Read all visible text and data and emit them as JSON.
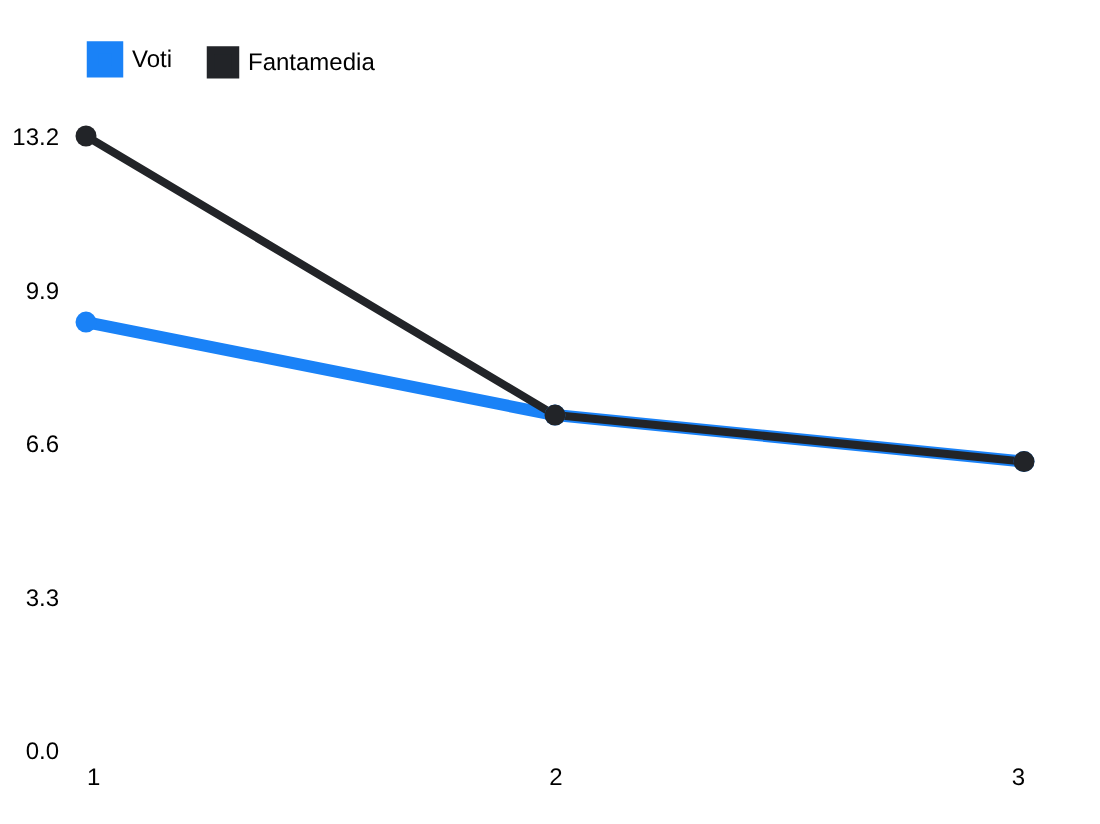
{
  "chart_data": {
    "type": "line",
    "x": [
      1,
      2,
      3
    ],
    "series": [
      {
        "name": "Voti",
        "color": "#1a82f7",
        "values": [
          9.2,
          7.2,
          6.2
        ]
      },
      {
        "name": "Fantamedia",
        "color": "#222428",
        "values": [
          13.2,
          7.2,
          6.2
        ]
      }
    ],
    "xlim": [
      1,
      3
    ],
    "xticks": [
      1,
      2,
      3
    ],
    "ylim": [
      0,
      13.2
    ],
    "yticks": [
      {
        "value": 0,
        "label": "0.0"
      },
      3.3,
      6.6,
      9.9,
      13.2
    ],
    "grid": false,
    "legend": "top",
    "marker": "circle",
    "line_style": "solid"
  }
}
